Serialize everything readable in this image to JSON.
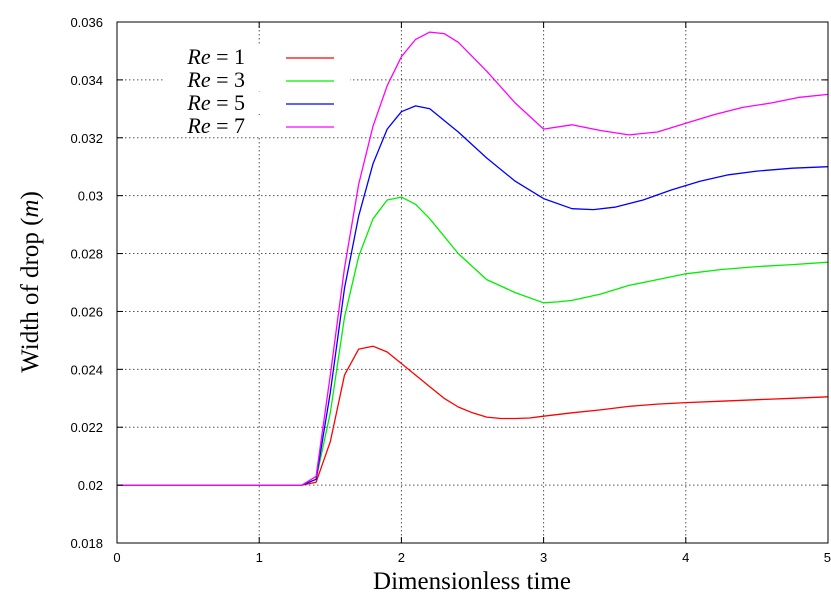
{
  "chart_data": {
    "type": "line",
    "xlabel": "Dimensionless time",
    "ylabel_prefix": "Width of drop (",
    "ylabel_var": "m",
    "ylabel_suffix": ")",
    "xlim": [
      0,
      5
    ],
    "ylim": [
      0.018,
      0.036
    ],
    "x_ticks": [
      0,
      1,
      2,
      3,
      4,
      5
    ],
    "x_tick_labels": [
      "0",
      "1",
      "2",
      "3",
      "4",
      "5"
    ],
    "y_ticks": [
      0.018,
      0.02,
      0.022,
      0.024,
      0.026,
      0.028,
      0.03,
      0.032,
      0.034,
      0.036
    ],
    "y_tick_labels": [
      "0.018",
      "0.02",
      "0.022",
      "0.024",
      "0.026",
      "0.028",
      "0.03",
      "0.032",
      "0.034",
      "0.036"
    ],
    "grid": true,
    "legend_position": "top-left",
    "series": [
      {
        "name": "Re = 1",
        "name_var": "Re",
        "name_rest": " = 1",
        "color": "#ff0000",
        "x": [
          0,
          1.3,
          1.4,
          1.5,
          1.6,
          1.7,
          1.8,
          1.9,
          2.0,
          2.1,
          2.2,
          2.3,
          2.4,
          2.5,
          2.6,
          2.7,
          2.8,
          2.9,
          3.0,
          3.2,
          3.4,
          3.6,
          3.8,
          4.0,
          4.25,
          4.5,
          4.75,
          5.0
        ],
        "y": [
          0.02,
          0.02,
          0.0201,
          0.0215,
          0.0238,
          0.0247,
          0.0248,
          0.0246,
          0.0242,
          0.0238,
          0.0234,
          0.023,
          0.0227,
          0.0225,
          0.02235,
          0.0223,
          0.0223,
          0.02232,
          0.02238,
          0.0225,
          0.0226,
          0.02272,
          0.0228,
          0.02285,
          0.0229,
          0.02295,
          0.023,
          0.02305
        ]
      },
      {
        "name": "Re = 3",
        "name_var": "Re",
        "name_rest": " = 3",
        "color": "#00ee00",
        "x": [
          0,
          1.3,
          1.4,
          1.5,
          1.6,
          1.7,
          1.8,
          1.9,
          2.0,
          2.1,
          2.2,
          2.4,
          2.6,
          2.8,
          3.0,
          3.1,
          3.2,
          3.4,
          3.6,
          3.8,
          4.0,
          4.25,
          4.5,
          4.75,
          5.0
        ],
        "y": [
          0.02,
          0.02,
          0.0202,
          0.0225,
          0.0258,
          0.0279,
          0.0292,
          0.02985,
          0.02995,
          0.0297,
          0.0292,
          0.028,
          0.0271,
          0.02665,
          0.0263,
          0.02633,
          0.02638,
          0.0266,
          0.0269,
          0.0271,
          0.0273,
          0.02745,
          0.02755,
          0.02762,
          0.0277
        ]
      },
      {
        "name": "Re = 5",
        "name_var": "Re",
        "name_rest": " = 5",
        "color": "#0000ff",
        "x": [
          0,
          1.3,
          1.4,
          1.5,
          1.6,
          1.7,
          1.8,
          1.9,
          2.0,
          2.1,
          2.2,
          2.4,
          2.6,
          2.8,
          3.0,
          3.2,
          3.35,
          3.5,
          3.7,
          3.9,
          4.1,
          4.3,
          4.5,
          4.75,
          5.0
        ],
        "y": [
          0.02,
          0.02,
          0.0202,
          0.0232,
          0.0268,
          0.0293,
          0.0311,
          0.0323,
          0.0329,
          0.0331,
          0.033,
          0.0322,
          0.0313,
          0.0305,
          0.0299,
          0.02955,
          0.02952,
          0.0296,
          0.02985,
          0.0302,
          0.0305,
          0.03072,
          0.03085,
          0.03095,
          0.031
        ]
      },
      {
        "name": "Re = 7",
        "name_var": "Re",
        "name_rest": " = 7",
        "color": "#ff00ff",
        "x": [
          0,
          1.3,
          1.4,
          1.5,
          1.6,
          1.7,
          1.8,
          1.9,
          2.0,
          2.1,
          2.2,
          2.3,
          2.4,
          2.6,
          2.8,
          3.0,
          3.2,
          3.4,
          3.6,
          3.8,
          4.0,
          4.2,
          4.4,
          4.6,
          4.8,
          5.0
        ],
        "y": [
          0.02,
          0.02,
          0.0203,
          0.0238,
          0.0275,
          0.0304,
          0.0324,
          0.0338,
          0.0348,
          0.0354,
          0.03565,
          0.0356,
          0.0353,
          0.0343,
          0.0332,
          0.0323,
          0.03245,
          0.03225,
          0.0321,
          0.0322,
          0.0325,
          0.0328,
          0.03305,
          0.0332,
          0.0334,
          0.0335
        ]
      }
    ]
  }
}
